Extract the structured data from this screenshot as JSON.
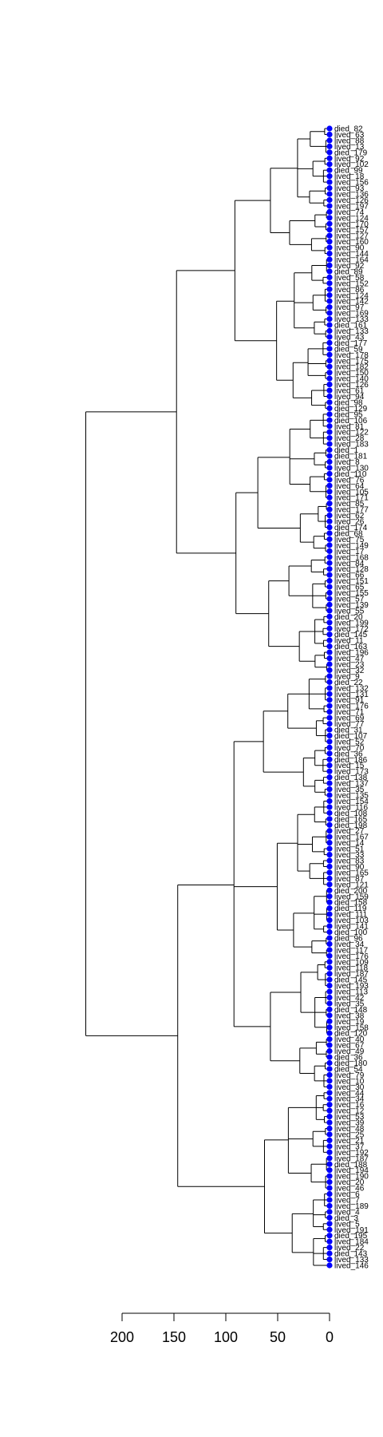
{
  "chart_data": {
    "type": "dendrogram",
    "orientation": "horizontal",
    "leaves": [
      "died_82",
      "lived_63",
      "lived_88",
      "lived_13",
      "died_179",
      "lived_92",
      "lived_102",
      "died_99",
      "lived_18",
      "lived_156",
      "lived_93",
      "lived_136",
      "lived_126",
      "lived_197",
      "lived_74",
      "lived_124",
      "lived_170",
      "lived_157",
      "lived_127",
      "lived_160",
      "lived_90",
      "lived_144",
      "lived_164",
      "lived_92",
      "died_89",
      "lived_58",
      "lived_152",
      "lived_86",
      "lived_124",
      "lived_142",
      "lived_97",
      "lived_169",
      "lived_133",
      "died_161",
      "lived_133",
      "lived_43",
      "died_177",
      "died_59",
      "lived_178",
      "lived_175",
      "lived_182",
      "lived_150",
      "lived_140",
      "lived_126",
      "lived_61",
      "lived_94",
      "died_98",
      "died_129",
      "died_95",
      "died_106",
      "lived_81",
      "lived_122",
      "lived_28",
      "lived_183",
      "died_1",
      "died_181",
      "lived_8",
      "lived_130",
      "died_110",
      "lived_76",
      "lived_64",
      "lived_105",
      "lived_171",
      "lived_85",
      "lived_177",
      "lived_62",
      "lived_26",
      "died_174",
      "died_68",
      "lived_75",
      "lived_149",
      "lived_17",
      "lived_168",
      "lived_84",
      "lived_128",
      "lived_66",
      "lived_151",
      "lived_65",
      "lived_155",
      "lived_57",
      "lived_139",
      "lived_55",
      "died_20",
      "lived_199",
      "lived_172",
      "died_145",
      "lived_11",
      "died_163",
      "lived_196",
      "lived_47",
      "lived_23",
      "lived_32",
      "lived_9",
      "died_22",
      "lived_132",
      "lived_131",
      "lived_91",
      "lived_176",
      "lived_71",
      "lived_69",
      "lived_77",
      "died_31",
      "died_107",
      "lived_52",
      "lived_70",
      "died_36",
      "died_186",
      "lived_15",
      "lived_173",
      "died_138",
      "lived_137",
      "lived_35",
      "lived_135",
      "lived_154",
      "lived_116",
      "died_108",
      "died_165",
      "died_198",
      "lived_27",
      "lived_167",
      "lived_14",
      "lived_51",
      "lived_33",
      "lived_83",
      "lived_90",
      "lived_165",
      "lived_87",
      "lived_121",
      "died_200",
      "lived_159",
      "died_158",
      "died_119",
      "lived_111",
      "lived_103",
      "lived_141",
      "died_100",
      "died_96",
      "lived_34",
      "lived_117",
      "lived_176",
      "lived_109",
      "lived_118",
      "lived_187",
      "died_145",
      "lived_193",
      "lived_113",
      "lived_42",
      "lived_35",
      "died_148",
      "lived_38",
      "lived_19",
      "lived_158",
      "died_120",
      "lived_40",
      "lived_67",
      "lived_49",
      "died_36",
      "died_180",
      "died_54",
      "lived_79",
      "lived_10",
      "lived_30",
      "lived_44",
      "lived_34",
      "lived_16",
      "lived_12",
      "lived_53",
      "lived_39",
      "lived_48",
      "lived_25",
      "lived_21",
      "lived_37",
      "lived_192",
      "lived_187",
      "died_188",
      "lived_194",
      "lived_190",
      "lived_20",
      "lived_46",
      "lived_6",
      "lived_7",
      "lived_189",
      "lived_4",
      "died_3",
      "lived_5",
      "lived_191",
      "died_195",
      "lived_184",
      "lived_22",
      "died_143",
      "lived_133",
      "lived_146"
    ],
    "height_axis": {
      "ticks": [
        200,
        150,
        100,
        50,
        0
      ],
      "range": [
        0,
        200
      ]
    },
    "approx_root_height": 235,
    "leaf_marker_color": "#0000ff",
    "branch_color": "#000000"
  }
}
